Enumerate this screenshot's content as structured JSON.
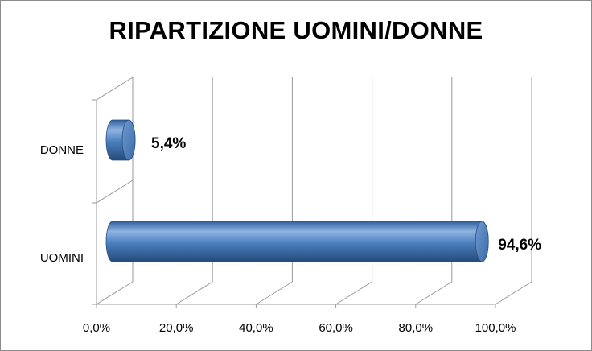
{
  "chart_data": {
    "type": "bar",
    "orientation": "horizontal",
    "style": "3d-cylinder",
    "title": "RIPARTIZIONE UOMINI/DONNE",
    "categories": [
      "DONNE",
      "UOMINI"
    ],
    "values": [
      5.4,
      94.6
    ],
    "value_labels": [
      "5,4%",
      "94,6%"
    ],
    "x_ticks": [
      "0,0%",
      "20,0%",
      "40,0%",
      "60,0%",
      "80,0%",
      "100,0%"
    ],
    "xlim": [
      0,
      100
    ],
    "xlabel": "",
    "ylabel": "",
    "grid": true,
    "legend": "none",
    "colors": {
      "bar": "#4a7ebb",
      "bar_light": "#8fb4e3",
      "bar_dark": "#254a7a",
      "grid": "#9a9a9a"
    }
  }
}
